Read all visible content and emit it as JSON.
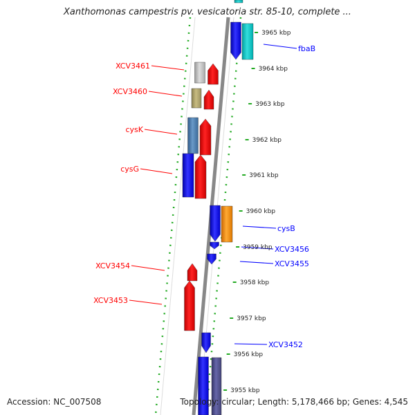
{
  "title": "Xanthomonas campestris pv. vesicatoria str. 85-10, complete ...",
  "footer": {
    "accession": "Accession: NC_007508",
    "topology": "Topology: circular; Length: 5,178,466 bp; Genes: 4,545"
  },
  "ticks": [
    "3965 kbp",
    "3964 kbp",
    "3963 kbp",
    "3962 kbp",
    "3961 kbp",
    "3960 kbp",
    "3959 kbp",
    "3958 kbp",
    "3957 kbp",
    "3956 kbp",
    "3955 kbp"
  ],
  "genes_reverse": [
    {
      "label": "XCV3461",
      "color": "#ff0000"
    },
    {
      "label": "XCV3460",
      "color": "#ff0000"
    },
    {
      "label": "cysK",
      "color": "#ff0000"
    },
    {
      "label": "cysG",
      "color": "#ff0000"
    },
    {
      "label": "XCV3454",
      "color": "#ff0000"
    },
    {
      "label": "XCV3453",
      "color": "#ff0000"
    }
  ],
  "genes_forward": [
    {
      "label": "fbaB",
      "color": "#0000ff"
    },
    {
      "label": "cysB",
      "color": "#0000ff"
    },
    {
      "label": "XCV3456",
      "color": "#0000ff"
    },
    {
      "label": "XCV3455",
      "color": "#0000ff"
    },
    {
      "label": "XCV3452",
      "color": "#0000ff"
    }
  ]
}
